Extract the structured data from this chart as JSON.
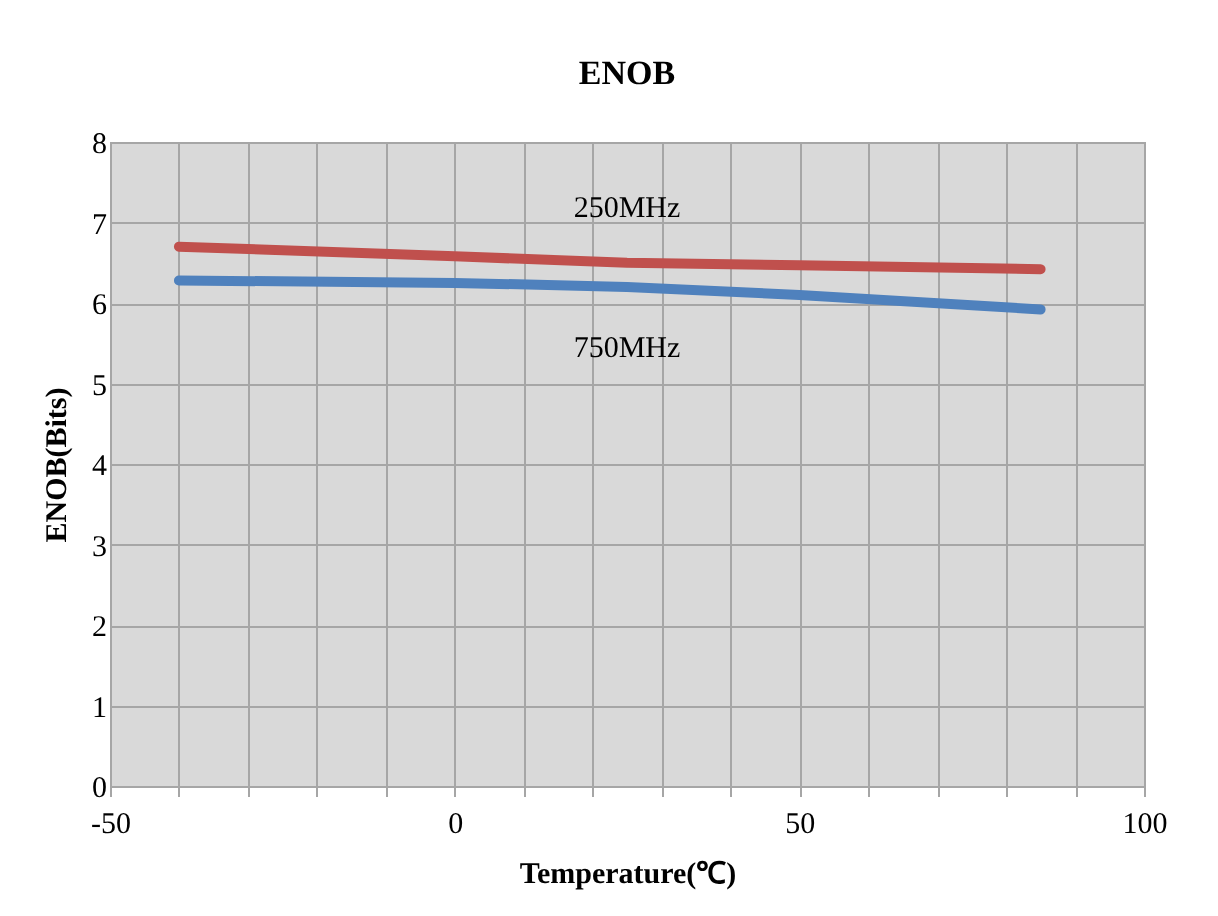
{
  "chart_data": {
    "type": "line",
    "title": "ENOB",
    "xlabel": "Temperature(℃)",
    "ylabel": "ENOB(Bits)",
    "x": [
      -40,
      0,
      25,
      50,
      85
    ],
    "series": [
      {
        "name": "250MHz",
        "color": "#c0504d",
        "values": [
          6.7,
          6.58,
          6.5,
          6.47,
          6.42
        ]
      },
      {
        "name": "750MHz",
        "color": "#4f81bd",
        "values": [
          6.28,
          6.25,
          6.2,
          6.1,
          5.92
        ]
      }
    ],
    "xlim": [
      -50,
      100
    ],
    "xticks": [
      -50,
      {
        "value": -40,
        "label": null
      },
      {
        "value": -30,
        "label": null
      },
      {
        "value": -20,
        "label": null
      },
      {
        "value": -10,
        "label": null
      },
      0,
      {
        "value": 10,
        "label": null
      },
      {
        "value": 20,
        "label": null
      },
      {
        "value": 30,
        "label": null
      },
      {
        "value": 40,
        "label": null
      },
      50,
      {
        "value": 60,
        "label": null
      },
      {
        "value": 70,
        "label": null
      },
      {
        "value": 80,
        "label": null
      },
      {
        "value": 90,
        "label": null
      },
      100
    ],
    "ylim": [
      0,
      8
    ],
    "yticks": [
      0,
      1,
      2,
      3,
      4,
      5,
      6,
      7,
      8
    ],
    "grid": true,
    "legend": false,
    "marker": "none",
    "line_style": "solid"
  }
}
